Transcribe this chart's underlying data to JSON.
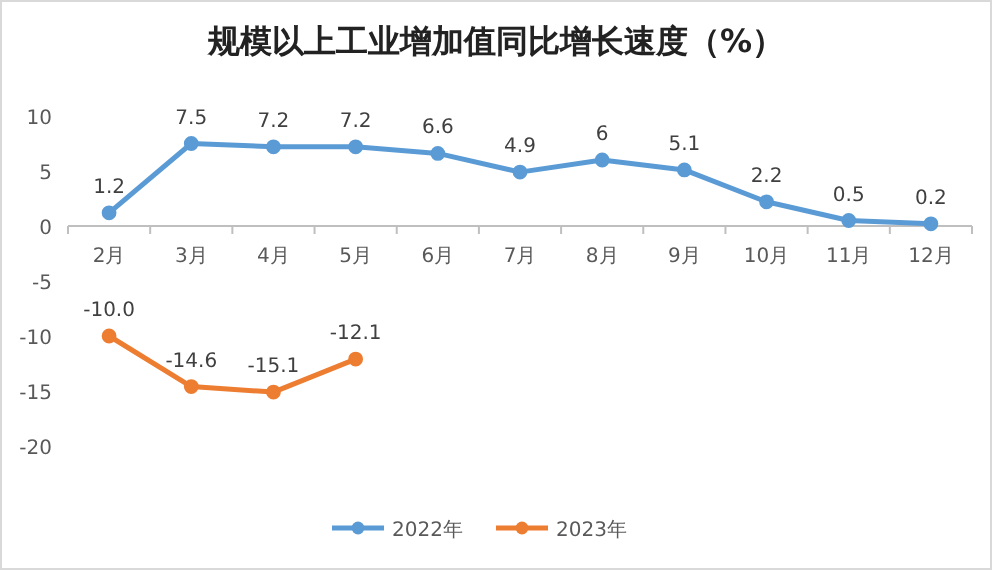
{
  "chart_data": {
    "type": "line",
    "title": "规模以上工业增加值同比增长速度（%）",
    "categories": [
      "2月",
      "3月",
      "4月",
      "5月",
      "6月",
      "7月",
      "8月",
      "9月",
      "10月",
      "11月",
      "12月"
    ],
    "series": [
      {
        "name": "2022年",
        "color": "#5b9bd5",
        "values": [
          1.2,
          7.5,
          7.2,
          7.2,
          6.6,
          4.9,
          6,
          5.1,
          2.2,
          0.5,
          0.2
        ],
        "value_labels": [
          "1.2",
          "7.5",
          "7.2",
          "7.2",
          "6.6",
          "4.9",
          "6",
          "5.1",
          "2.2",
          "0.5",
          "0.2"
        ]
      },
      {
        "name": "2023年",
        "color": "#ed7d31",
        "values": [
          -10.0,
          -14.6,
          -15.1,
          -12.1,
          null,
          null,
          null,
          null,
          null,
          null,
          null
        ],
        "value_labels": [
          "-10.0",
          "-14.6",
          "-15.1",
          "-12.1",
          null,
          null,
          null,
          null,
          null,
          null,
          null
        ]
      }
    ],
    "ylim": [
      -20,
      10
    ],
    "yticks": [
      -20,
      -15,
      -10,
      -5,
      0,
      5,
      10
    ],
    "marker": "circle",
    "line_style": "solid",
    "grid": false,
    "legend": "bottom"
  }
}
